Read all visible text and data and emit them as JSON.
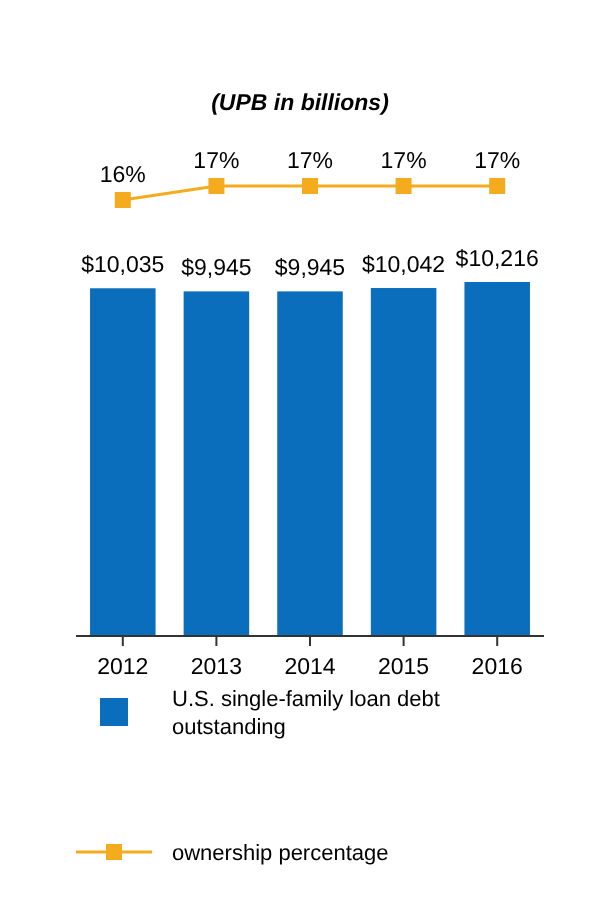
{
  "chart_data": [
    {
      "type": "line",
      "title": "(UPB in billions)",
      "categories": [
        null,
        null,
        null,
        null,
        null
      ],
      "series": [
        {
          "name": "ownership percentage",
          "color": "#f5ab1e",
          "values": [
            16,
            17,
            17,
            17,
            17
          ],
          "value_labels": [
            "16%",
            "17%",
            "17%",
            "17%",
            "17%"
          ]
        }
      ],
      "tick_labels": false,
      "marker": "square",
      "legend": "bottom"
    },
    {
      "type": "bar",
      "categories": [
        "2012",
        "2013",
        "2014",
        "2015",
        "2016"
      ],
      "series": [
        {
          "name": "U.S. single-family loan debt outstanding",
          "color": "#0a6ebd",
          "values": [
            10035,
            9945,
            9945,
            10042,
            10216
          ],
          "value_labels": [
            "$10,035",
            "$9,945",
            "$9,945",
            "$10,042",
            "$10,216"
          ]
        }
      ],
      "legend": "bottom"
    }
  ]
}
